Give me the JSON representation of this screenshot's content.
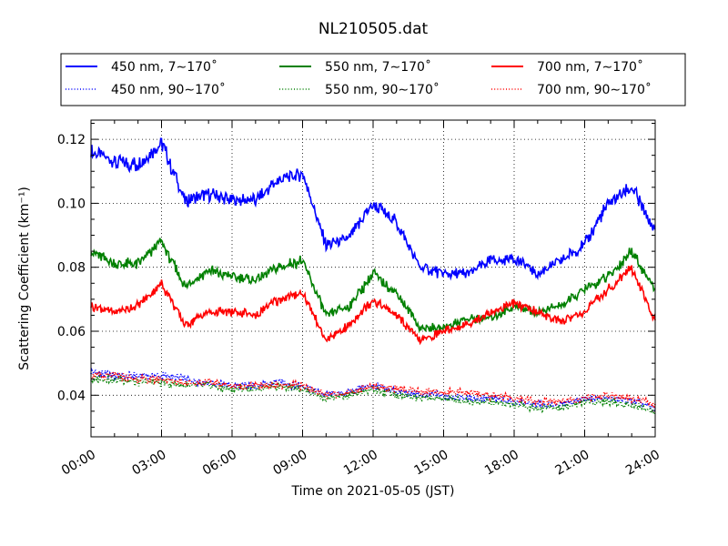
{
  "chart_data": {
    "type": "line",
    "title": "NL210505.dat",
    "xlabel": "Time on 2021-05-05 (JST)",
    "ylabel": "Scattering Coefficient (km⁻¹)",
    "xlim": [
      "00:00",
      "24:00"
    ],
    "ylim": [
      0.027,
      0.126
    ],
    "x_ticks": [
      "00:00",
      "03:00",
      "06:00",
      "09:00",
      "12:00",
      "15:00",
      "18:00",
      "21:00",
      "24:00"
    ],
    "y_ticks": [
      "0.04",
      "0.06",
      "0.08",
      "0.10",
      "0.12"
    ],
    "grid": true,
    "legend_placement": "top",
    "x": [
      "00:00",
      "01:00",
      "02:00",
      "03:00",
      "04:00",
      "05:00",
      "06:00",
      "07:00",
      "08:00",
      "09:00",
      "10:00",
      "11:00",
      "12:00",
      "13:00",
      "14:00",
      "15:00",
      "16:00",
      "17:00",
      "18:00",
      "19:00",
      "20:00",
      "21:00",
      "22:00",
      "23:00",
      "24:00"
    ],
    "series": [
      {
        "name": "450 nm, 7∼170˚",
        "color": "#0000ff",
        "style": "solid",
        "values": [
          0.116,
          0.113,
          0.112,
          0.119,
          0.101,
          0.103,
          0.101,
          0.101,
          0.107,
          0.109,
          0.087,
          0.089,
          0.1,
          0.094,
          0.08,
          0.078,
          0.078,
          0.082,
          0.083,
          0.078,
          0.082,
          0.087,
          0.1,
          0.105,
          0.091
        ]
      },
      {
        "name": "450 nm, 90∼170˚",
        "color": "#0000ff",
        "style": "dotted",
        "values": [
          0.047,
          0.046,
          0.046,
          0.046,
          0.045,
          0.044,
          0.043,
          0.043,
          0.044,
          0.043,
          0.04,
          0.041,
          0.043,
          0.041,
          0.04,
          0.04,
          0.039,
          0.039,
          0.038,
          0.037,
          0.037,
          0.039,
          0.039,
          0.038,
          0.036
        ]
      },
      {
        "name": "550 nm, 7∼170˚",
        "color": "#008000",
        "style": "solid",
        "values": [
          0.085,
          0.081,
          0.081,
          0.088,
          0.074,
          0.079,
          0.077,
          0.076,
          0.08,
          0.082,
          0.065,
          0.068,
          0.078,
          0.072,
          0.061,
          0.061,
          0.064,
          0.064,
          0.068,
          0.066,
          0.068,
          0.073,
          0.077,
          0.085,
          0.073
        ]
      },
      {
        "name": "550 nm, 90∼170˚",
        "color": "#008000",
        "style": "dotted",
        "values": [
          0.045,
          0.045,
          0.044,
          0.044,
          0.043,
          0.043,
          0.042,
          0.042,
          0.043,
          0.042,
          0.039,
          0.04,
          0.042,
          0.04,
          0.039,
          0.039,
          0.038,
          0.038,
          0.037,
          0.036,
          0.036,
          0.038,
          0.038,
          0.037,
          0.035
        ]
      },
      {
        "name": "700 nm, 7∼170˚",
        "color": "#ff0000",
        "style": "solid",
        "values": [
          0.068,
          0.066,
          0.068,
          0.075,
          0.062,
          0.066,
          0.066,
          0.065,
          0.07,
          0.072,
          0.057,
          0.062,
          0.07,
          0.065,
          0.057,
          0.06,
          0.062,
          0.066,
          0.069,
          0.066,
          0.063,
          0.066,
          0.073,
          0.08,
          0.063
        ]
      },
      {
        "name": "700 nm, 90∼170˚",
        "color": "#ff0000",
        "style": "dotted",
        "values": [
          0.046,
          0.046,
          0.045,
          0.045,
          0.044,
          0.044,
          0.043,
          0.043,
          0.043,
          0.043,
          0.04,
          0.041,
          0.043,
          0.042,
          0.041,
          0.041,
          0.041,
          0.04,
          0.039,
          0.038,
          0.038,
          0.039,
          0.04,
          0.039,
          0.037
        ]
      }
    ]
  }
}
